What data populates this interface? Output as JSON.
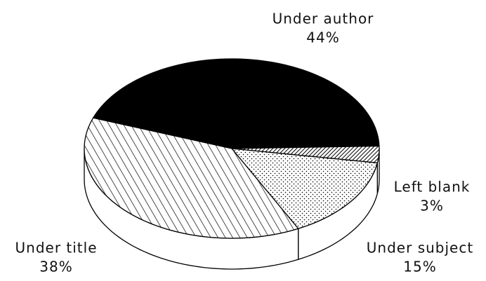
{
  "chart_data": {
    "type": "pie",
    "categories": [
      "Under author",
      "Left blank",
      "Under subject",
      "Under title"
    ],
    "values": [
      44,
      3,
      15,
      38
    ],
    "value_labels": [
      "44%",
      "3%",
      "15%",
      "38%"
    ]
  }
}
